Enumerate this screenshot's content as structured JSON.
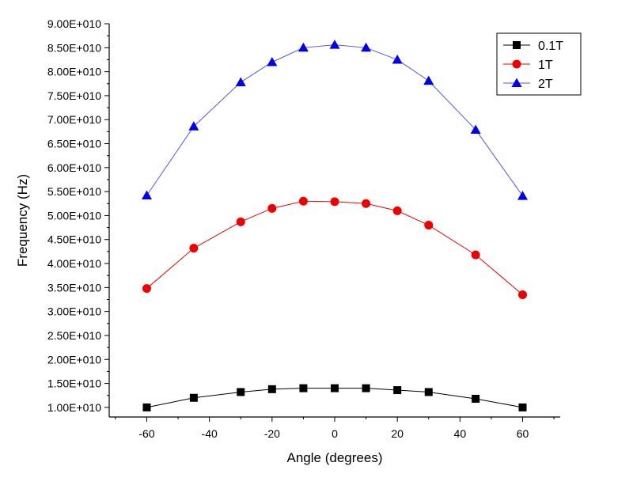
{
  "chart_data": {
    "type": "line",
    "title": "",
    "xlabel": "Angle (degrees)",
    "ylabel": "Frequency (Hz)",
    "xlim": [
      -72,
      72
    ],
    "ylim": [
      8000000000.0,
      90000000000.0
    ],
    "x_ticks": [
      -60,
      -40,
      -20,
      0,
      20,
      40,
      60
    ],
    "x_tick_labels": [
      "-60",
      "-40",
      "-20",
      "0",
      "20",
      "40",
      "60"
    ],
    "y_ticks": [
      10000000000.0,
      15000000000.0,
      20000000000.0,
      25000000000.0,
      30000000000.0,
      35000000000.0,
      40000000000.0,
      45000000000.0,
      50000000000.0,
      55000000000.0,
      60000000000.0,
      65000000000.0,
      70000000000.0,
      75000000000.0,
      80000000000.0,
      85000000000.0,
      90000000000.0
    ],
    "y_tick_labels": [
      "1.00E+010",
      "1.50E+010",
      "2.00E+010",
      "2.50E+010",
      "3.00E+010",
      "3.50E+010",
      "4.00E+010",
      "4.50E+010",
      "5.00E+010",
      "5.50E+010",
      "6.00E+010",
      "6.50E+010",
      "7.00E+010",
      "7.50E+010",
      "8.00E+010",
      "8.50E+010",
      "9.00E+010"
    ],
    "grid": false,
    "legend_position": "top-right",
    "x": [
      -60,
      -45,
      -30,
      -20,
      -10,
      0,
      10,
      20,
      30,
      45,
      60
    ],
    "series": [
      {
        "name": "0.1T",
        "color": "#000000",
        "marker": "square",
        "values": [
          10000000000.0,
          12000000000.0,
          13200000000.0,
          13800000000.0,
          14000000000.0,
          14000000000.0,
          14000000000.0,
          13600000000.0,
          13200000000.0,
          11800000000.0,
          10000000000.0
        ]
      },
      {
        "name": "1T",
        "color": "#ee0000",
        "marker": "circle",
        "values": [
          34800000000.0,
          43200000000.0,
          48700000000.0,
          51500000000.0,
          53000000000.0,
          52900000000.0,
          52500000000.0,
          51000000000.0,
          48000000000.0,
          41800000000.0,
          33500000000.0
        ]
      },
      {
        "name": "2T",
        "color": "#0000ee",
        "line_color": "#5555dd",
        "marker": "triangle",
        "values": [
          54200000000.0,
          68600000000.0,
          77800000000.0,
          82000000000.0,
          85000000000.0,
          85600000000.0,
          85000000000.0,
          82500000000.0,
          78100000000.0,
          67900000000.0,
          54100000000.0
        ]
      }
    ]
  }
}
